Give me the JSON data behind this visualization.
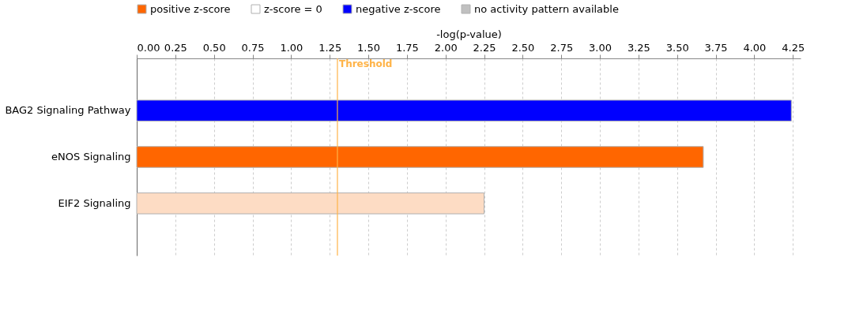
{
  "chart_data": {
    "type": "bar",
    "orientation": "horizontal",
    "xlabel": "-log(p-value)",
    "categories": [
      "BAG2 Signaling Pathway",
      "eNOS Signaling",
      "EIF2 Signaling"
    ],
    "xlim": [
      0,
      4.3
    ],
    "xticks": [
      {
        "value": 0,
        "label": "0.00"
      },
      {
        "value": 0.25,
        "label": "0.25"
      },
      {
        "value": 0.5,
        "label": "0.50"
      },
      {
        "value": 0.75,
        "label": "0.75"
      },
      {
        "value": 1,
        "label": "1.00"
      },
      {
        "value": 1.25,
        "label": "1.25"
      },
      {
        "value": 1.5,
        "label": "1.50"
      },
      {
        "value": 1.75,
        "label": "1.75"
      },
      {
        "value": 2,
        "label": "2.00"
      },
      {
        "value": 2.25,
        "label": "2.25"
      },
      {
        "value": 2.5,
        "label": "2.50"
      },
      {
        "value": 2.75,
        "label": "2.75"
      },
      {
        "value": 3,
        "label": "3.00"
      },
      {
        "value": 3.25,
        "label": "3.25"
      },
      {
        "value": 3.5,
        "label": "3.50"
      },
      {
        "value": 3.75,
        "label": "3.75"
      },
      {
        "value": 4,
        "label": "4.00"
      },
      {
        "value": 4.25,
        "label": "4.25"
      }
    ],
    "ref_lines": [
      {
        "axis": "x",
        "value": 1.3,
        "label": "Threshold",
        "color": "#ffb347"
      }
    ],
    "series": [
      {
        "name": "positive z-score",
        "color": "#ff6600",
        "values": [
          null,
          3.67,
          null
        ]
      },
      {
        "name": "z-score = 0",
        "color": "#ffffff",
        "values": [
          null,
          null,
          null
        ]
      },
      {
        "name": "negative z-score",
        "color": "#0000ff",
        "values": [
          4.24,
          null,
          null
        ]
      },
      {
        "name": "no activity pattern available",
        "color": "#c0c0c0",
        "values": [
          null,
          null,
          null
        ]
      },
      {
        "color": "#fddcc4",
        "values": [
          null,
          null,
          2.25
        ]
      }
    ],
    "grid": "x",
    "legend": "top left"
  }
}
